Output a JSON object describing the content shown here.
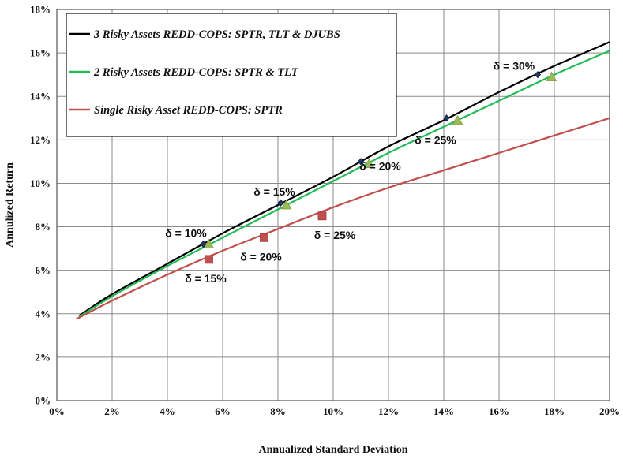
{
  "chart_data": {
    "type": "line",
    "xlabel": "Annualized Standard Deviation",
    "ylabel": "Annulized Return",
    "xlim": [
      0,
      20
    ],
    "ylim": [
      0,
      18
    ],
    "xticks": [
      "0%",
      "2%",
      "4%",
      "6%",
      "8%",
      "10%",
      "12%",
      "14%",
      "16%",
      "18%",
      "20%"
    ],
    "yticks": [
      "0%",
      "2%",
      "4%",
      "6%",
      "8%",
      "10%",
      "12%",
      "14%",
      "16%",
      "18%"
    ],
    "grid": true,
    "legend_position": "top-left",
    "series": [
      {
        "name": "3 Risky Assets REDD-COPS: SPTR, TLT & DJUBS",
        "color": "#000000",
        "marker": "diamond",
        "x": [
          0.8,
          2,
          4,
          6,
          8,
          10,
          12,
          14,
          16,
          18,
          20
        ],
        "y": [
          3.9,
          4.9,
          6.3,
          7.7,
          9.0,
          10.3,
          11.7,
          12.9,
          14.2,
          15.4,
          16.5
        ],
        "markers": [
          {
            "x": 5.3,
            "y": 7.2,
            "label": "δ = 10%"
          },
          {
            "x": 8.1,
            "y": 9.1,
            "label": "δ = 15%"
          },
          {
            "x": 11.0,
            "y": 11.0,
            "label": ""
          },
          {
            "x": 14.1,
            "y": 13.0,
            "label": ""
          },
          {
            "x": 17.4,
            "y": 15.0,
            "label": "δ = 30%"
          }
        ]
      },
      {
        "name": "2 Risky Assets REDD-COPS: SPTR & TLT",
        "color": "#22bb55",
        "marker": "triangle",
        "x": [
          0.8,
          2,
          4,
          6,
          8,
          10,
          12,
          14,
          16,
          18,
          20
        ],
        "y": [
          3.85,
          4.8,
          6.2,
          7.5,
          8.8,
          10.1,
          11.4,
          12.6,
          13.8,
          15.0,
          16.1
        ],
        "markers": [
          {
            "x": 5.5,
            "y": 7.2,
            "label": ""
          },
          {
            "x": 8.3,
            "y": 9.0,
            "label": ""
          },
          {
            "x": 11.3,
            "y": 10.9,
            "label": "δ = 20%"
          },
          {
            "x": 14.5,
            "y": 12.9,
            "label": "δ = 25%"
          },
          {
            "x": 17.9,
            "y": 14.9,
            "label": ""
          }
        ]
      },
      {
        "name": "Single Risky Asset  REDD-COPS: SPTR",
        "color": "#c0504d",
        "marker": "square",
        "x": [
          0.7,
          2,
          4,
          6,
          8,
          10,
          12,
          14,
          16,
          18,
          20
        ],
        "y": [
          3.75,
          4.6,
          5.8,
          6.9,
          7.9,
          8.9,
          9.8,
          10.6,
          11.4,
          12.2,
          13.0
        ],
        "markers": [
          {
            "x": 5.5,
            "y": 6.5,
            "label": "δ = 15%"
          },
          {
            "x": 7.5,
            "y": 7.5,
            "label": "δ = 20%"
          },
          {
            "x": 9.6,
            "y": 8.5,
            "label": "δ = 25%"
          }
        ]
      }
    ]
  }
}
